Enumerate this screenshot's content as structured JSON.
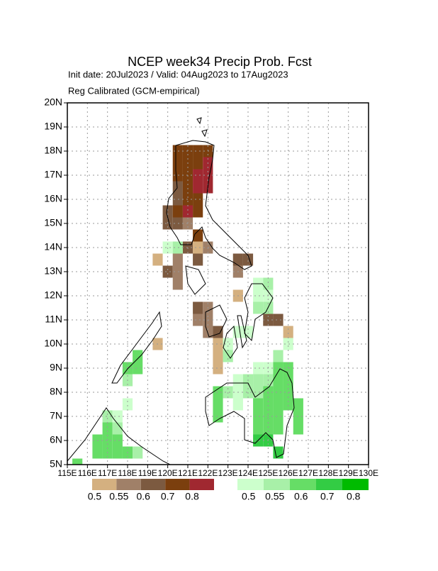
{
  "chart_data": {
    "type": "grid-map",
    "title": "NCEP week34 Precip Prob. Fcst",
    "subtitle": "Init date: 20Jul2023 / Valid: 04Aug2023 to 17Aug2023",
    "note": "Reg Calibrated (GCM-empirical)",
    "xlim": [
      115,
      130
    ],
    "ylim": [
      5,
      20
    ],
    "cell_size": 0.5,
    "grid": true,
    "xticks": [
      {
        "value": 115,
        "label": "115E"
      },
      {
        "value": 116,
        "label": "116E"
      },
      {
        "value": 117,
        "label": "117E"
      },
      {
        "value": 118,
        "label": "118E"
      },
      {
        "value": 119,
        "label": "119E"
      },
      {
        "value": 120,
        "label": "120E"
      },
      {
        "value": 121,
        "label": "121E"
      },
      {
        "value": 122,
        "label": "122E"
      },
      {
        "value": 123,
        "label": "123E"
      },
      {
        "value": 124,
        "label": "124E"
      },
      {
        "value": 125,
        "label": "125E"
      },
      {
        "value": 126,
        "label": "126E"
      },
      {
        "value": 127,
        "label": "127E"
      },
      {
        "value": 128,
        "label": "128E"
      },
      {
        "value": 129,
        "label": "129E"
      },
      {
        "value": 130,
        "label": "130E"
      }
    ],
    "yticks": [
      {
        "value": 5,
        "label": "5N"
      },
      {
        "value": 6,
        "label": "6N"
      },
      {
        "value": 7,
        "label": "7N"
      },
      {
        "value": 8,
        "label": "8N"
      },
      {
        "value": 9,
        "label": "9N"
      },
      {
        "value": 10,
        "label": "10N"
      },
      {
        "value": 11,
        "label": "11N"
      },
      {
        "value": 12,
        "label": "12N"
      },
      {
        "value": 13,
        "label": "13N"
      },
      {
        "value": 14,
        "label": "14N"
      },
      {
        "value": 15,
        "label": "15N"
      },
      {
        "value": 16,
        "label": "16N"
      },
      {
        "value": 17,
        "label": "17N"
      },
      {
        "value": 18,
        "label": "18N"
      },
      {
        "value": 19,
        "label": "19N"
      },
      {
        "value": 20,
        "label": "20N"
      }
    ],
    "dry_levels": [
      0.5,
      0.55,
      0.6,
      0.7,
      0.8
    ],
    "dry_colors": [
      "#d4b080",
      "#a08068",
      "#7c5a40",
      "#7b3f0e",
      "#a02830"
    ],
    "wet_levels": [
      0.5,
      0.55,
      0.6,
      0.7,
      0.8
    ],
    "wet_colors": [
      "#ccffcc",
      "#a8f0a8",
      "#66dd66",
      "#33cc44",
      "#00bb00"
    ],
    "dry_cells": [
      [
        120.25,
        17.75,
        0.7
      ],
      [
        120.75,
        17.75,
        0.7
      ],
      [
        121.25,
        17.75,
        0.7
      ],
      [
        121.75,
        17.75,
        0.7
      ],
      [
        120.25,
        17.25,
        0.7
      ],
      [
        120.75,
        17.25,
        0.7
      ],
      [
        121.25,
        17.25,
        0.7
      ],
      [
        121.75,
        17.25,
        0.8
      ],
      [
        120.25,
        16.75,
        0.7
      ],
      [
        120.75,
        16.75,
        0.7
      ],
      [
        121.25,
        16.75,
        0.8
      ],
      [
        121.75,
        16.75,
        0.8
      ],
      [
        120.25,
        16.25,
        0.6
      ],
      [
        120.75,
        16.25,
        0.7
      ],
      [
        121.25,
        16.25,
        0.8
      ],
      [
        121.75,
        16.25,
        0.8
      ],
      [
        120.25,
        15.75,
        0.6
      ],
      [
        120.75,
        15.75,
        0.7
      ],
      [
        121.25,
        15.75,
        0.7
      ],
      [
        119.75,
        15.25,
        0.6
      ],
      [
        120.25,
        15.25,
        0.7
      ],
      [
        120.75,
        15.25,
        0.8
      ],
      [
        121.25,
        15.25,
        0.7
      ],
      [
        119.75,
        14.75,
        0.6
      ],
      [
        120.25,
        14.75,
        0.6
      ],
      [
        120.75,
        14.75,
        0.55
      ],
      [
        121.25,
        14.25,
        0.7
      ],
      [
        120.75,
        13.75,
        0.6
      ],
      [
        121.25,
        13.75,
        0.5
      ],
      [
        121.75,
        13.75,
        0.55
      ],
      [
        119.25,
        13.25,
        0.5
      ],
      [
        120.25,
        13.25,
        0.55
      ],
      [
        121.25,
        13.25,
        0.6
      ],
      [
        123.25,
        13.25,
        0.6
      ],
      [
        123.75,
        13.25,
        0.6
      ],
      [
        119.75,
        12.75,
        0.6
      ],
      [
        120.25,
        12.75,
        0.55
      ],
      [
        123.25,
        12.75,
        0.55
      ],
      [
        120.25,
        12.25,
        0.55
      ],
      [
        123.25,
        11.75,
        0.5
      ],
      [
        121.25,
        11.25,
        0.6
      ],
      [
        121.75,
        11.25,
        0.55
      ],
      [
        121.25,
        10.75,
        0.55
      ],
      [
        121.75,
        10.75,
        0.55
      ],
      [
        124.75,
        10.75,
        0.6
      ],
      [
        125.25,
        10.75,
        0.6
      ],
      [
        121.75,
        10.25,
        0.55
      ],
      [
        122.25,
        10.25,
        0.6
      ],
      [
        125.75,
        10.25,
        0.5
      ],
      [
        119.25,
        9.75,
        0.5
      ],
      [
        122.25,
        9.75,
        0.5
      ],
      [
        122.25,
        9.25,
        0.5
      ],
      [
        122.25,
        8.75,
        0.5
      ]
    ],
    "wet_cells": [
      [
        119.75,
        13.75,
        0.5
      ],
      [
        120.25,
        13.75,
        0.55
      ],
      [
        124.25,
        12.25,
        0.5
      ],
      [
        124.75,
        12.25,
        0.55
      ],
      [
        124.25,
        11.75,
        0.5
      ],
      [
        124.75,
        11.75,
        0.5
      ],
      [
        124.25,
        11.25,
        0.55
      ],
      [
        124.75,
        11.25,
        0.55
      ],
      [
        123.25,
        10.25,
        0.5
      ],
      [
        123.75,
        10.25,
        0.5
      ],
      [
        122.75,
        9.75,
        0.5
      ],
      [
        125.75,
        9.75,
        0.5
      ],
      [
        118.25,
        9.25,
        0.6
      ],
      [
        122.75,
        9.25,
        0.55
      ],
      [
        125.25,
        9.25,
        0.55
      ],
      [
        117.75,
        8.75,
        0.6
      ],
      [
        118.25,
        8.75,
        0.6
      ],
      [
        124.25,
        8.75,
        0.5
      ],
      [
        124.75,
        8.75,
        0.5
      ],
      [
        125.25,
        8.75,
        0.6
      ],
      [
        125.75,
        8.75,
        0.6
      ],
      [
        117.75,
        8.25,
        0.55
      ],
      [
        123.25,
        8.25,
        0.5
      ],
      [
        123.75,
        8.25,
        0.55
      ],
      [
        124.25,
        8.25,
        0.55
      ],
      [
        124.75,
        8.25,
        0.55
      ],
      [
        125.25,
        8.25,
        0.6
      ],
      [
        125.75,
        8.25,
        0.6
      ],
      [
        122.25,
        7.75,
        0.6
      ],
      [
        122.75,
        7.75,
        0.55
      ],
      [
        123.25,
        7.75,
        0.5
      ],
      [
        123.75,
        7.75,
        0.55
      ],
      [
        124.25,
        7.75,
        0.55
      ],
      [
        124.75,
        7.75,
        0.6
      ],
      [
        125.25,
        7.75,
        0.6
      ],
      [
        125.75,
        7.75,
        0.6
      ],
      [
        117.75,
        7.25,
        0.5
      ],
      [
        122.25,
        7.25,
        0.6
      ],
      [
        123.25,
        7.25,
        0.5
      ],
      [
        124.25,
        7.25,
        0.6
      ],
      [
        124.75,
        7.25,
        0.6
      ],
      [
        125.25,
        7.25,
        0.6
      ],
      [
        125.75,
        7.25,
        0.6
      ],
      [
        126.25,
        7.25,
        0.6
      ],
      [
        116.75,
        6.75,
        0.55
      ],
      [
        117.25,
        6.75,
        0.5
      ],
      [
        122.25,
        6.75,
        0.6
      ],
      [
        124.25,
        6.75,
        0.6
      ],
      [
        124.75,
        6.75,
        0.6
      ],
      [
        125.25,
        6.75,
        0.6
      ],
      [
        126.25,
        6.75,
        0.6
      ],
      [
        116.75,
        6.25,
        0.6
      ],
      [
        117.25,
        6.25,
        0.55
      ],
      [
        124.25,
        6.25,
        0.6
      ],
      [
        124.75,
        6.25,
        0.6
      ],
      [
        125.25,
        6.25,
        0.6
      ],
      [
        126.25,
        6.25,
        0.6
      ],
      [
        116.25,
        5.75,
        0.6
      ],
      [
        116.75,
        5.75,
        0.6
      ],
      [
        117.25,
        5.75,
        0.6
      ],
      [
        124.25,
        5.75,
        0.7
      ],
      [
        124.75,
        5.75,
        0.7
      ],
      [
        116.25,
        5.25,
        0.6
      ],
      [
        116.75,
        5.25,
        0.6
      ],
      [
        117.25,
        5.25,
        0.6
      ],
      [
        117.75,
        5.25,
        0.6
      ],
      [
        118.25,
        5.25,
        0.55
      ],
      [
        125.25,
        5.25,
        0.7
      ],
      [
        115.25,
        4.75,
        0.6
      ]
    ]
  }
}
